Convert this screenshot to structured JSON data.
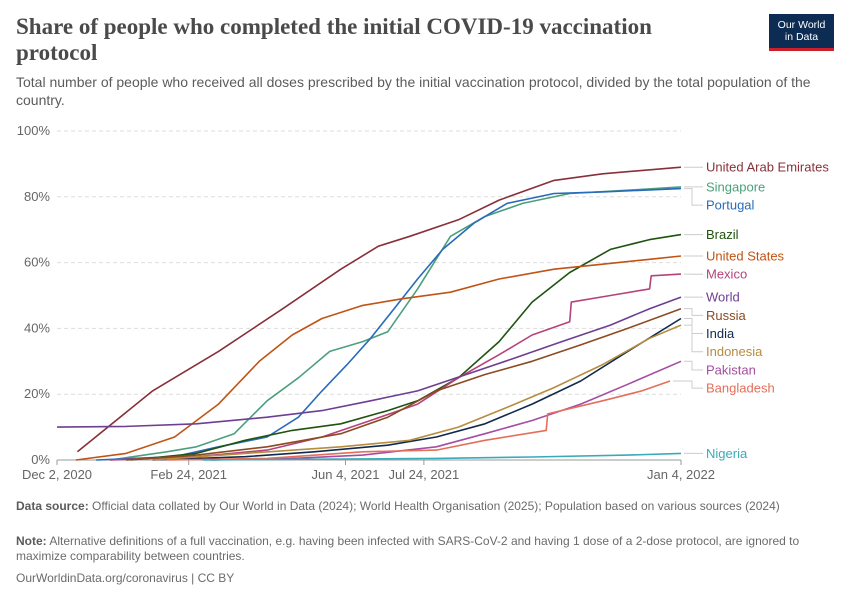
{
  "header": {
    "title": "Share of people who completed the initial COVID-19 vaccination protocol",
    "subtitle": "Total number of people who received all doses prescribed by the initial vaccination protocol, divided by the total population of the country.",
    "logo_line1": "Our World",
    "logo_line2": "in Data"
  },
  "footer": {
    "source_label": "Data source:",
    "source_text": "Official data collated by Our World in Data (2024); World Health Organisation (2025); Population based on various sources (2024)",
    "note_label": "Note:",
    "note_text": "Alternative definitions of a full vaccination, e.g. having been infected with SARS-CoV-2 and having 1 dose of a 2-dose protocol, are ignored to maximize comparability between countries.",
    "credit": "OurWorldinData.org/coronavirus | CC BY"
  },
  "chart_data": {
    "type": "line",
    "x_axis": {
      "type": "date",
      "min": "2020-12-02",
      "max": "2022-01-04",
      "ticks": [
        "2020-12-02",
        "2021-02-24",
        "2021-06-04",
        "2021-07-24",
        "2022-01-04"
      ],
      "tick_labels": [
        "Dec 2, 2020",
        "Feb 24, 2021",
        "Jun 4, 2021",
        "Jul 24, 2021",
        "Jan 4, 2022"
      ]
    },
    "y_axis": {
      "min": 0,
      "max": 100,
      "ticks": [
        0,
        20,
        40,
        60,
        80,
        100
      ],
      "tick_labels": [
        "0%",
        "20%",
        "40%",
        "60%",
        "80%",
        "100%"
      ],
      "grid": true
    },
    "legend": "right, labels at line ends",
    "series": [
      {
        "name": "United Arab Emirates",
        "color": "#883039",
        "points": [
          [
            "2020-12-15",
            2.5
          ],
          [
            "2021-02-01",
            21
          ],
          [
            "2021-03-15",
            33
          ],
          [
            "2021-04-25",
            46
          ],
          [
            "2021-06-01",
            58
          ],
          [
            "2021-06-25",
            65
          ],
          [
            "2021-07-15",
            68
          ],
          [
            "2021-08-15",
            73
          ],
          [
            "2021-09-10",
            79
          ],
          [
            "2021-10-15",
            85
          ],
          [
            "2021-11-15",
            87
          ],
          [
            "2022-01-04",
            89
          ]
        ]
      },
      {
        "name": "Singapore",
        "color": "#4c9f7d",
        "points": [
          [
            "2021-01-05",
            0
          ],
          [
            "2021-02-10",
            2.5
          ],
          [
            "2021-03-01",
            4
          ],
          [
            "2021-03-25",
            8
          ],
          [
            "2021-04-15",
            18
          ],
          [
            "2021-05-05",
            25
          ],
          [
            "2021-05-25",
            33
          ],
          [
            "2021-06-15",
            36
          ],
          [
            "2021-07-01",
            39
          ],
          [
            "2021-07-20",
            52
          ],
          [
            "2021-08-10",
            68
          ],
          [
            "2021-09-01",
            74
          ],
          [
            "2021-09-25",
            78
          ],
          [
            "2021-10-25",
            81
          ],
          [
            "2021-12-01",
            82
          ],
          [
            "2022-01-04",
            83
          ]
        ]
      },
      {
        "name": "Portugal",
        "color": "#286bbb",
        "points": [
          [
            "2020-12-27",
            0
          ],
          [
            "2021-02-15",
            1
          ],
          [
            "2021-03-15",
            4
          ],
          [
            "2021-04-15",
            7
          ],
          [
            "2021-05-05",
            13
          ],
          [
            "2021-05-20",
            21
          ],
          [
            "2021-06-05",
            29
          ],
          [
            "2021-06-20",
            37
          ],
          [
            "2021-07-05",
            46
          ],
          [
            "2021-07-20",
            55
          ],
          [
            "2021-08-05",
            64
          ],
          [
            "2021-08-25",
            72
          ],
          [
            "2021-09-15",
            78
          ],
          [
            "2021-10-15",
            81
          ],
          [
            "2021-11-15",
            81.5
          ],
          [
            "2022-01-04",
            82.5
          ]
        ]
      },
      {
        "name": "Brazil",
        "color": "#20530f",
        "points": [
          [
            "2021-01-18",
            0
          ],
          [
            "2021-03-01",
            2
          ],
          [
            "2021-04-01",
            6
          ],
          [
            "2021-05-01",
            9
          ],
          [
            "2021-06-01",
            11
          ],
          [
            "2021-07-01",
            15
          ],
          [
            "2021-07-20",
            18
          ],
          [
            "2021-08-15",
            25
          ],
          [
            "2021-09-10",
            36
          ],
          [
            "2021-10-01",
            48
          ],
          [
            "2021-10-25",
            57
          ],
          [
            "2021-11-20",
            64
          ],
          [
            "2021-12-15",
            67
          ],
          [
            "2022-01-04",
            68.5
          ]
        ]
      },
      {
        "name": "United States",
        "color": "#c15314",
        "points": [
          [
            "2020-12-14",
            0
          ],
          [
            "2021-01-15",
            2
          ],
          [
            "2021-02-15",
            7
          ],
          [
            "2021-03-15",
            17
          ],
          [
            "2021-04-10",
            30
          ],
          [
            "2021-05-01",
            38
          ],
          [
            "2021-05-20",
            43
          ],
          [
            "2021-06-15",
            47
          ],
          [
            "2021-07-10",
            49
          ],
          [
            "2021-08-10",
            51
          ],
          [
            "2021-09-10",
            55
          ],
          [
            "2021-10-15",
            58
          ],
          [
            "2021-11-15",
            59.5
          ],
          [
            "2021-12-15",
            61
          ],
          [
            "2022-01-04",
            62
          ]
        ]
      },
      {
        "name": "Mexico",
        "color": "#b5427b",
        "points": [
          [
            "2021-01-05",
            0
          ],
          [
            "2021-03-01",
            1
          ],
          [
            "2021-04-15",
            3
          ],
          [
            "2021-05-20",
            7
          ],
          [
            "2021-06-20",
            12
          ],
          [
            "2021-07-20",
            17
          ],
          [
            "2021-08-15",
            25
          ],
          [
            "2021-09-10",
            32
          ],
          [
            "2021-10-01",
            38
          ],
          [
            "2021-10-25",
            42
          ],
          [
            "2021-10-26",
            48
          ],
          [
            "2021-11-20",
            50
          ],
          [
            "2021-12-15",
            52
          ],
          [
            "2021-12-16",
            56
          ],
          [
            "2022-01-04",
            56.5
          ]
        ]
      },
      {
        "name": "World",
        "color": "#6d3e91",
        "points": [
          [
            "2020-12-02",
            10
          ],
          [
            "2021-01-15",
            10.2
          ],
          [
            "2021-03-01",
            11
          ],
          [
            "2021-04-15",
            13
          ],
          [
            "2021-05-20",
            15
          ],
          [
            "2021-06-20",
            18
          ],
          [
            "2021-07-20",
            21
          ],
          [
            "2021-08-20",
            26
          ],
          [
            "2021-09-20",
            31
          ],
          [
            "2021-10-20",
            36
          ],
          [
            "2021-11-20",
            41
          ],
          [
            "2021-12-15",
            46
          ],
          [
            "2022-01-04",
            49.5
          ]
        ]
      },
      {
        "name": "Russia",
        "color": "#8c4a20",
        "points": [
          [
            "2021-01-15",
            0
          ],
          [
            "2021-03-01",
            1.5
          ],
          [
            "2021-04-15",
            4
          ],
          [
            "2021-06-01",
            8
          ],
          [
            "2021-07-01",
            13
          ],
          [
            "2021-08-01",
            21
          ],
          [
            "2021-09-01",
            26
          ],
          [
            "2021-10-01",
            30
          ],
          [
            "2021-11-01",
            35
          ],
          [
            "2021-12-01",
            40
          ],
          [
            "2022-01-04",
            46
          ]
        ]
      },
      {
        "name": "India",
        "color": "#102a4d",
        "points": [
          [
            "2021-02-01",
            0
          ],
          [
            "2021-04-01",
            1
          ],
          [
            "2021-05-15",
            2.5
          ],
          [
            "2021-07-01",
            4.5
          ],
          [
            "2021-08-01",
            7
          ],
          [
            "2021-09-01",
            11
          ],
          [
            "2021-10-01",
            17
          ],
          [
            "2021-11-01",
            24
          ],
          [
            "2021-12-01",
            33
          ],
          [
            "2022-01-04",
            43
          ]
        ]
      },
      {
        "name": "Indonesia",
        "color": "#b68d3e",
        "points": [
          [
            "2021-02-01",
            0
          ],
          [
            "2021-04-01",
            2
          ],
          [
            "2021-06-01",
            4
          ],
          [
            "2021-07-15",
            6
          ],
          [
            "2021-08-15",
            10
          ],
          [
            "2021-09-15",
            16
          ],
          [
            "2021-10-15",
            22
          ],
          [
            "2021-11-15",
            29
          ],
          [
            "2021-12-15",
            37
          ],
          [
            "2022-01-04",
            41
          ]
        ]
      },
      {
        "name": "Pakistan",
        "color": "#a44da2",
        "points": [
          [
            "2021-03-10",
            0
          ],
          [
            "2021-05-01",
            0.5
          ],
          [
            "2021-06-15",
            1.5
          ],
          [
            "2021-08-01",
            4
          ],
          [
            "2021-09-01",
            8
          ],
          [
            "2021-10-01",
            12
          ],
          [
            "2021-11-01",
            17
          ],
          [
            "2021-12-01",
            23
          ],
          [
            "2022-01-04",
            30
          ]
        ]
      },
      {
        "name": "Bangladesh",
        "color": "#e56e5a",
        "points": [
          [
            "2021-02-10",
            0
          ],
          [
            "2021-04-15",
            0.5
          ],
          [
            "2021-06-15",
            2.5
          ],
          [
            "2021-08-01",
            3
          ],
          [
            "2021-09-01",
            6
          ],
          [
            "2021-10-10",
            9
          ],
          [
            "2021-10-11",
            14
          ],
          [
            "2021-11-15",
            18
          ],
          [
            "2021-12-10",
            21
          ],
          [
            "2021-12-28",
            24
          ]
        ]
      },
      {
        "name": "Nigeria",
        "color": "#38aaba",
        "points": [
          [
            "2021-03-05",
            0
          ],
          [
            "2021-06-01",
            0.3
          ],
          [
            "2021-08-01",
            0.5
          ],
          [
            "2021-10-01",
            0.9
          ],
          [
            "2021-12-01",
            1.5
          ],
          [
            "2022-01-04",
            2
          ]
        ]
      }
    ]
  }
}
